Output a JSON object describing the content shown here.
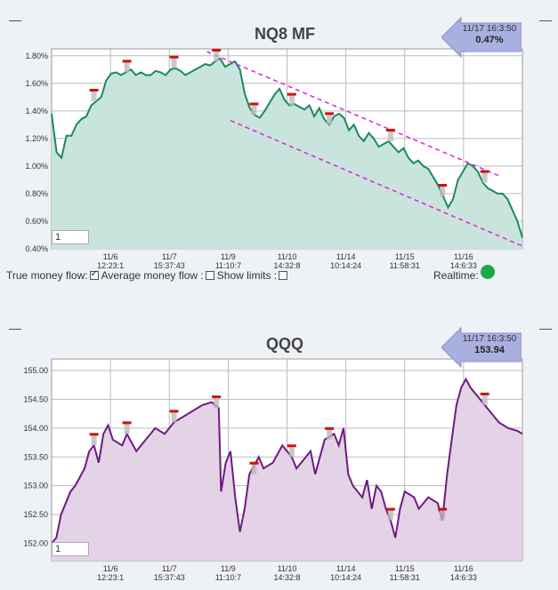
{
  "chart_data": [
    {
      "type": "area",
      "title": "NQ8 MF",
      "y_ticks": [
        "1.80%",
        "1.60%",
        "1.40%",
        "1.20%",
        "1.00%",
        "0.80%",
        "0.60%",
        "0.40%"
      ],
      "y_values": [
        1.8,
        1.6,
        1.4,
        1.2,
        1.0,
        0.8,
        0.6,
        0.4
      ],
      "ylim": [
        0.4,
        1.85
      ],
      "x_ticks": [
        {
          "date": "11/6",
          "time": "12:23:1"
        },
        {
          "date": "11/7",
          "time": "15:37:43"
        },
        {
          "date": "11/9",
          "time": "11:10:7"
        },
        {
          "date": "11/10",
          "time": "14:32:8"
        },
        {
          "date": "11/14",
          "time": "10:14:24"
        },
        {
          "date": "11/15",
          "time": "11:58:31"
        },
        {
          "date": "11/16",
          "time": "14:6:33"
        }
      ],
      "series": [
        {
          "values": [
            1.38,
            1.1,
            1.06,
            1.22,
            1.22,
            1.3,
            1.34,
            1.36,
            1.44,
            1.47,
            1.5,
            1.62,
            1.67,
            1.68,
            1.66,
            1.68,
            1.7,
            1.66,
            1.68,
            1.66,
            1.66,
            1.69,
            1.68,
            1.66,
            1.7,
            1.71,
            1.69,
            1.66,
            1.68,
            1.7,
            1.72,
            1.74,
            1.73,
            1.76,
            1.78,
            1.72,
            1.74,
            1.76,
            1.7,
            1.52,
            1.42,
            1.37,
            1.35,
            1.4,
            1.46,
            1.52,
            1.56,
            1.48,
            1.44,
            1.45,
            1.43,
            1.41,
            1.44,
            1.36,
            1.42,
            1.34,
            1.3,
            1.36,
            1.38,
            1.35,
            1.26,
            1.3,
            1.22,
            1.18,
            1.24,
            1.2,
            1.14,
            1.16,
            1.18,
            1.14,
            1.1,
            1.13,
            1.06,
            1.02,
            1.04,
            1.0,
            0.98,
            0.92,
            0.86,
            0.78,
            0.7,
            0.76,
            0.9,
            0.96,
            1.02,
            1.0,
            0.96,
            0.88,
            0.84,
            0.82,
            0.8,
            0.8,
            0.76,
            0.68,
            0.6,
            0.48
          ]
        }
      ],
      "trendlines": [
        {
          "from": [
            0.33,
            1.83
          ],
          "to": [
            0.95,
            0.93
          ]
        },
        {
          "from": [
            0.38,
            1.33
          ],
          "to": [
            1.0,
            0.42
          ]
        }
      ],
      "markers": [
        0.09,
        0.16,
        0.26,
        0.35,
        0.43,
        0.51,
        0.59,
        0.72,
        0.83,
        0.92
      ],
      "callout": {
        "time": "11/17 16:3:50",
        "value": "0.47%"
      },
      "fill": "#c9e4dc",
      "stroke": "#1a8a5e",
      "input_value": "1"
    },
    {
      "type": "area",
      "title": "QQQ",
      "y_ticks": [
        "155.00",
        "154.50",
        "154.00",
        "153.50",
        "153.00",
        "152.50",
        "152.00"
      ],
      "y_values": [
        155.0,
        154.5,
        154.0,
        153.5,
        153.0,
        152.5,
        152.0
      ],
      "ylim": [
        151.7,
        155.2
      ],
      "x_ticks": [
        {
          "date": "11/6",
          "time": "12:23:1"
        },
        {
          "date": "11/7",
          "time": "15:37:43"
        },
        {
          "date": "11/9",
          "time": "11:10:7"
        },
        {
          "date": "11/10",
          "time": "14:32:8"
        },
        {
          "date": "11/14",
          "time": "10:14:24"
        },
        {
          "date": "11/15",
          "time": "11:58:31"
        },
        {
          "date": "11/16",
          "time": "14:6:33"
        }
      ],
      "series": [
        {
          "values": [
            152.0,
            152.1,
            152.5,
            152.9,
            153.0,
            153.3,
            153.6,
            153.7,
            153.4,
            153.9,
            154.05,
            153.8,
            153.7,
            153.9,
            153.6,
            153.8,
            154.0,
            153.9,
            154.1,
            154.2,
            154.3,
            154.4,
            154.45,
            154.35,
            152.9,
            153.4,
            153.6,
            152.8,
            152.2,
            152.6,
            153.2,
            153.5,
            153.3,
            153.4,
            153.7,
            153.5,
            153.3,
            153.4,
            153.6,
            153.2,
            153.8,
            153.9,
            153.7,
            154.0,
            153.2,
            153.0,
            152.8,
            153.1,
            152.6,
            153.0,
            152.9,
            152.6,
            152.4,
            152.1,
            152.6,
            152.9,
            152.8,
            152.6,
            152.8,
            152.7,
            152.4,
            153.2,
            153.8,
            154.4,
            154.7,
            154.85,
            154.7,
            154.6,
            154.5,
            154.4,
            154.3,
            154.2,
            154.1,
            154.0,
            153.95,
            153.9
          ],
          "pts_x": [
            0,
            0.01,
            0.02,
            0.04,
            0.05,
            0.07,
            0.08,
            0.09,
            0.1,
            0.11,
            0.12,
            0.13,
            0.15,
            0.16,
            0.18,
            0.2,
            0.22,
            0.24,
            0.26,
            0.28,
            0.3,
            0.32,
            0.34,
            0.355,
            0.36,
            0.37,
            0.38,
            0.39,
            0.4,
            0.41,
            0.42,
            0.44,
            0.45,
            0.47,
            0.49,
            0.51,
            0.52,
            0.53,
            0.55,
            0.56,
            0.58,
            0.6,
            0.61,
            0.62,
            0.63,
            0.64,
            0.66,
            0.67,
            0.68,
            0.69,
            0.7,
            0.71,
            0.72,
            0.73,
            0.74,
            0.75,
            0.77,
            0.78,
            0.8,
            0.82,
            0.83,
            0.84,
            0.85,
            0.86,
            0.87,
            0.88,
            0.89,
            0.9,
            0.91,
            0.92,
            0.93,
            0.94,
            0.95,
            0.97,
            0.99,
            1.0
          ]
        }
      ],
      "markers": [
        0.09,
        0.16,
        0.26,
        0.35,
        0.43,
        0.51,
        0.59,
        0.72,
        0.83,
        0.92
      ],
      "callout": {
        "time": "11/17 16:3:50",
        "value": "153.94"
      },
      "fill": "#e4d2e6",
      "stroke": "#6f1a82",
      "input_value": "1"
    }
  ],
  "controls": {
    "true_money_flow": "True money flow:",
    "average_money_flow": "Average money flow :",
    "show_limits": "Show limits :",
    "realtime": "Realtime:"
  },
  "colors": {
    "trend": "#e020e0",
    "marker": "#cc1111",
    "realtime_dot": "#1aa84a"
  }
}
